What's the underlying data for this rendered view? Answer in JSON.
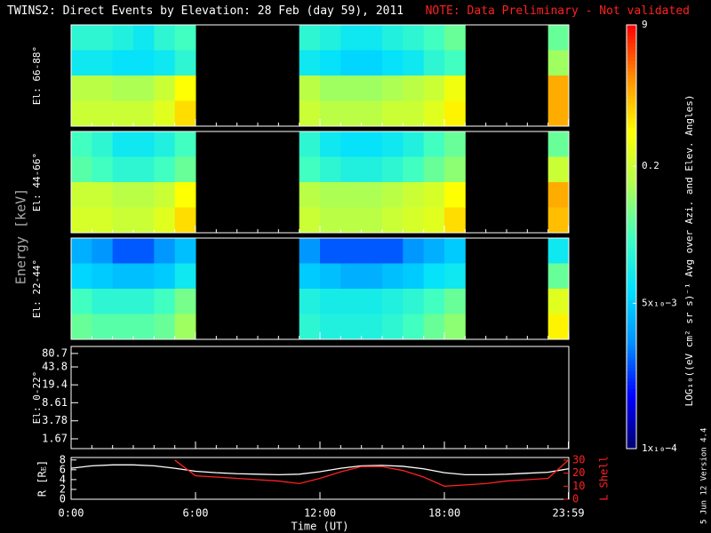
{
  "chart_data": [
    {
      "type": "heatmap",
      "title": "TWINS2: Direct Events by Elevation: 28 Feb (day  59), 2011",
      "note": "NOTE: Data Preliminary - Not validated",
      "ylabel": "Energy [keV]",
      "panel_label": "El: 66-88°",
      "x": [
        0,
        1,
        2,
        3,
        4,
        5,
        6,
        7,
        8,
        9,
        10,
        11,
        12,
        13,
        14,
        15,
        16,
        17,
        18,
        19,
        20,
        21,
        22,
        23
      ],
      "colorbar": {
        "label": "LOG₁₀((eV cm² sr s)⁻¹ Avg over Azi. and Elev. Angles)",
        "lim": [
          0.0001,
          9
        ],
        "log": true,
        "ticks": [
          9,
          0.2,
          {
            "value": 0.005,
            "label": "5x₁₀−3"
          },
          {
            "value": 0.0001,
            "label": "1x₁₀−4"
          }
        ],
        "colormap": [
          "#000070",
          "#0000ff",
          "#0090ff",
          "#00e0ff",
          "#40ffc0",
          "#b0ff50",
          "#ffff00",
          "#ff9000",
          "#ff0000"
        ]
      },
      "z": [
        [
          0.02,
          0.02,
          0.015,
          0.01,
          0.02,
          0.03,
          null,
          null,
          null,
          null,
          null,
          0.02,
          0.015,
          0.01,
          0.01,
          0.015,
          0.02,
          0.03,
          0.05,
          null,
          null,
          null,
          null,
          0.05
        ],
        [
          0.01,
          0.01,
          0.008,
          0.008,
          0.01,
          0.02,
          null,
          null,
          null,
          null,
          null,
          0.01,
          0.008,
          0.006,
          0.006,
          0.008,
          0.01,
          0.02,
          0.03,
          null,
          null,
          null,
          null,
          0.1
        ],
        [
          0.15,
          0.15,
          0.12,
          0.12,
          0.2,
          0.5,
          null,
          null,
          null,
          null,
          null,
          0.15,
          0.1,
          0.1,
          0.1,
          0.12,
          0.15,
          0.2,
          0.4,
          null,
          null,
          null,
          null,
          1.5
        ],
        [
          0.2,
          0.2,
          0.2,
          0.2,
          0.3,
          0.8,
          null,
          null,
          null,
          null,
          null,
          0.2,
          0.15,
          0.15,
          0.15,
          0.2,
          0.2,
          0.3,
          0.6,
          null,
          null,
          null,
          null,
          1.5
        ]
      ]
    },
    {
      "type": "heatmap",
      "panel_label": "El: 44-66°",
      "x": [
        0,
        1,
        2,
        3,
        4,
        5,
        6,
        7,
        8,
        9,
        10,
        11,
        12,
        13,
        14,
        15,
        16,
        17,
        18,
        19,
        20,
        21,
        22,
        23
      ],
      "z": [
        [
          0.03,
          0.02,
          0.01,
          0.01,
          0.015,
          0.03,
          null,
          null,
          null,
          null,
          null,
          0.02,
          0.01,
          0.008,
          0.008,
          0.01,
          0.015,
          0.03,
          0.05,
          null,
          null,
          null,
          null,
          0.05
        ],
        [
          0.04,
          0.03,
          0.02,
          0.02,
          0.03,
          0.05,
          null,
          null,
          null,
          null,
          null,
          0.03,
          0.02,
          0.015,
          0.015,
          0.02,
          0.03,
          0.05,
          0.08,
          null,
          null,
          null,
          null,
          0.2
        ],
        [
          0.2,
          0.2,
          0.15,
          0.15,
          0.2,
          0.5,
          null,
          null,
          null,
          null,
          null,
          0.15,
          0.12,
          0.12,
          0.12,
          0.15,
          0.2,
          0.25,
          0.5,
          null,
          null,
          null,
          null,
          1.5
        ],
        [
          0.25,
          0.25,
          0.2,
          0.2,
          0.3,
          0.8,
          null,
          null,
          null,
          null,
          null,
          0.2,
          0.15,
          0.15,
          0.15,
          0.2,
          0.25,
          0.3,
          0.8,
          null,
          null,
          null,
          null,
          1.2
        ]
      ]
    },
    {
      "type": "heatmap",
      "panel_label": "El: 22-44°",
      "x": [
        0,
        1,
        2,
        3,
        4,
        5,
        6,
        7,
        8,
        9,
        10,
        11,
        12,
        13,
        14,
        15,
        16,
        17,
        18,
        19,
        20,
        21,
        22,
        23
      ],
      "z": [
        [
          0.003,
          0.002,
          0.001,
          0.001,
          0.002,
          0.004,
          null,
          null,
          null,
          null,
          null,
          0.002,
          0.001,
          0.001,
          0.001,
          0.001,
          0.002,
          0.003,
          0.005,
          null,
          null,
          null,
          null,
          0.01
        ],
        [
          0.006,
          0.005,
          0.004,
          0.004,
          0.005,
          0.01,
          null,
          null,
          null,
          null,
          null,
          0.005,
          0.004,
          0.003,
          0.003,
          0.004,
          0.005,
          0.008,
          0.01,
          null,
          null,
          null,
          null,
          0.05
        ],
        [
          0.03,
          0.02,
          0.02,
          0.02,
          0.03,
          0.06,
          null,
          null,
          null,
          null,
          null,
          0.015,
          0.012,
          0.012,
          0.012,
          0.015,
          0.02,
          0.03,
          0.05,
          null,
          null,
          null,
          null,
          0.3
        ],
        [
          0.05,
          0.04,
          0.04,
          0.04,
          0.05,
          0.1,
          null,
          null,
          null,
          null,
          null,
          0.02,
          0.015,
          0.015,
          0.015,
          0.02,
          0.03,
          0.05,
          0.08,
          null,
          null,
          null,
          null,
          0.6
        ]
      ]
    },
    {
      "type": "heatmap",
      "panel_label": "El: 0-22°",
      "log": true,
      "ylim": [
        1.07,
        111
      ],
      "yticks": [
        80.7,
        43.8,
        19.4,
        8.61,
        3.78,
        1.67
      ],
      "z": []
    },
    {
      "type": "line",
      "xlabel": "Time (UT)",
      "footnote": "5 Jun 12   Version 4.4",
      "xlim": [
        0,
        24
      ],
      "xticks": [
        {
          "value": 0,
          "label": "0:00"
        },
        {
          "value": 6,
          "label": "6:00"
        },
        {
          "value": 12,
          "label": "12:00"
        },
        {
          "value": 18,
          "label": "18:00"
        },
        {
          "value": 23.98,
          "label": "23:59"
        }
      ],
      "ylabel": "R [Rᴇ]",
      "ylim": [
        0,
        8.5
      ],
      "yticks": [
        0,
        2,
        4,
        6,
        8
      ],
      "y2label": "L Shell",
      "y2lim": [
        0,
        32
      ],
      "y2ticks": [
        0,
        10,
        20,
        30
      ],
      "x": [
        0,
        1,
        2,
        3,
        4,
        5,
        6,
        7,
        8,
        9,
        10,
        11,
        12,
        13,
        14,
        15,
        16,
        17,
        18,
        19,
        20,
        21,
        22,
        23,
        23.98
      ],
      "series": [
        {
          "name": "R",
          "color": "#ffffff",
          "values": [
            6.3,
            6.8,
            7.0,
            7.0,
            6.8,
            6.3,
            5.7,
            5.4,
            5.2,
            5.1,
            5.0,
            5.1,
            5.6,
            6.3,
            6.8,
            6.9,
            6.7,
            6.2,
            5.4,
            5.0,
            5.0,
            5.1,
            5.3,
            5.5,
            6.2
          ]
        },
        {
          "name": "L Shell",
          "color": "#ff2020",
          "axis": "y2",
          "values": [
            null,
            null,
            null,
            null,
            null,
            30,
            18,
            17,
            16,
            15,
            14,
            12,
            16,
            21,
            25,
            25,
            22,
            17,
            10,
            11,
            12,
            14,
            15,
            16,
            30
          ]
        }
      ]
    }
  ]
}
